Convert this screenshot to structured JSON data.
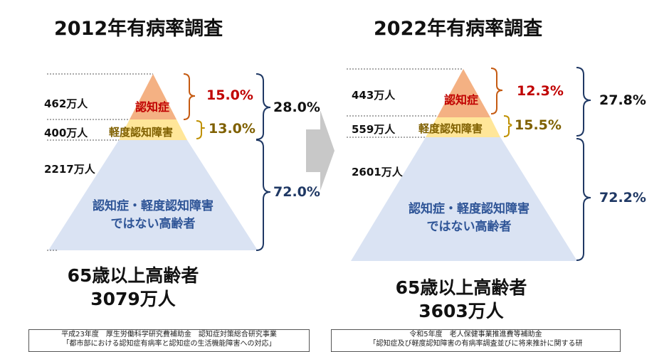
{
  "left": {
    "title": "2012年有病率調査",
    "counts": {
      "dementia": "462万人",
      "mci": "400万人",
      "normal": "2217万人"
    },
    "labels": {
      "dementia": "認知症",
      "mci": "軽度認知障害",
      "normal_line1": "認知症・軽度認知障害",
      "normal_line2": "ではない高齢者"
    },
    "percents": {
      "dementia": "15.0%",
      "mci": "13.0%",
      "combined": "28.0%",
      "normal": "72.0%"
    },
    "total_line1": "65歳以上高齢者",
    "total_line2": "3079万人",
    "source_line1": "平成23年度　厚生労働科学研究費補助金　認知症対策総合研究事業",
    "source_line2": "「都市部における認知症有病率と認知症の生活機能障害への対応」"
  },
  "right": {
    "title": "2022年有病率調査",
    "counts": {
      "dementia": "443万人",
      "mci": "559万人",
      "normal": "2601万人"
    },
    "labels": {
      "dementia": "認知症",
      "mci": "軽度認知障害",
      "normal_line1": "認知症・軽度認知障害",
      "normal_line2": "ではない高齢者"
    },
    "percents": {
      "dementia": "12.3%",
      "mci": "15.5%",
      "combined": "27.8%",
      "normal": "72.2%"
    },
    "total_line1": "65歳以上高齢者",
    "total_line2": "3603万人",
    "source_line1": "令和5年度　老人保健事業推進費等補助金",
    "source_line2": "「認知症及び軽度認知障害の有病率調査並びに将来推計に関する研"
  },
  "colors": {
    "dementia_fill": "#f4b183",
    "mci_fill": "#ffe699",
    "normal_fill": "#dae3f3",
    "bracket_orange": "#c55a11",
    "bracket_olive": "#bf9000",
    "bracket_navy": "#1f3864",
    "arrow": "#c8c8c8"
  }
}
